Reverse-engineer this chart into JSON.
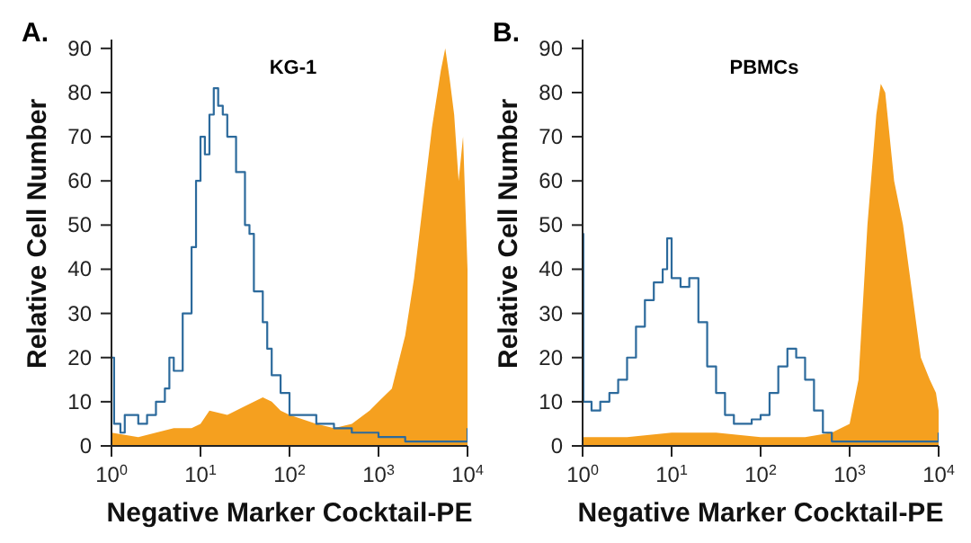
{
  "chart_data": [
    {
      "type": "area",
      "title": "A.",
      "annotations": [
        "KG-1"
      ],
      "xlabel": "Negative Marker Cocktail-PE",
      "ylabel": "Relative Cell Number",
      "log": "x",
      "marker": "none",
      "xlim": [
        1,
        10000
      ],
      "xticks": [
        {
          "value": 1,
          "label": "10$^{0}$"
        },
        {
          "value": 10,
          "label": "10$^{1}$"
        },
        {
          "value": 100,
          "label": "10$^{2}$"
        },
        {
          "value": 1000,
          "label": "10$^{3}$"
        },
        {
          "value": 10000,
          "label": "10$^{4}$"
        }
      ],
      "ylim": [
        0,
        92
      ],
      "yticks": [
        0,
        10,
        20,
        30,
        40,
        50,
        60,
        70,
        80,
        90
      ],
      "series": [
        {
          "color": "#f5a01f",
          "x": [
            1,
            2,
            3.16,
            5.01,
            7.94,
            10,
            12.6,
            20,
            31.6,
            50.1,
            63.1,
            79.4,
            100,
            200,
            316,
            501,
            794,
            1000,
            1413,
            1995,
            2512,
            3162,
            3981,
            5012,
            5623,
            6310,
            7079,
            7943,
            8913,
            10000
          ],
          "values": [
            3,
            2,
            3,
            4,
            4,
            5,
            8,
            7,
            9,
            11,
            10,
            8,
            7,
            5,
            4,
            5,
            8,
            10,
            13,
            25,
            38,
            55,
            72,
            85,
            90,
            83,
            75,
            60,
            70,
            40
          ]
        },
        {
          "type": "step",
          "color": "#2c6a9c",
          "x": [
            1,
            1.07,
            1.26,
            1.41,
            1.58,
            2,
            2.51,
            3.16,
            3.98,
            4.47,
            5.01,
            6.31,
            7.94,
            8.91,
            10,
            11.2,
            12.6,
            14.1,
            15.8,
            17.8,
            20,
            25.1,
            31.6,
            35.5,
            39.8,
            50.1,
            56.2,
            63.1,
            79.4,
            100,
            126,
            200,
            316,
            501,
            1000,
            1995,
            3162,
            6310,
            8913,
            10000
          ],
          "values": [
            20,
            5,
            3,
            7,
            7,
            5,
            7,
            10,
            13,
            20,
            17,
            30,
            45,
            60,
            70,
            66,
            75,
            81,
            77,
            75,
            70,
            62,
            50,
            48,
            35,
            28,
            22,
            16,
            12,
            7,
            7,
            5,
            4,
            3,
            2,
            1,
            1,
            1,
            1,
            4
          ]
        }
      ]
    },
    {
      "type": "area",
      "title": "B.",
      "annotations": [
        "PBMCs"
      ],
      "xlabel": "Negative Marker Cocktail-PE",
      "ylabel": "Relative Cell Number",
      "log": "x",
      "marker": "none",
      "xlim": [
        1,
        10000
      ],
      "xticks": [
        {
          "value": 1,
          "label": "10$^{0}$"
        },
        {
          "value": 10,
          "label": "10$^{1}$"
        },
        {
          "value": 100,
          "label": "10$^{2}$"
        },
        {
          "value": 1000,
          "label": "10$^{3}$"
        },
        {
          "value": 10000,
          "label": "10$^{4}$"
        }
      ],
      "ylim": [
        0,
        92
      ],
      "yticks": [
        0,
        10,
        20,
        30,
        40,
        50,
        60,
        70,
        80,
        90
      ],
      "series": [
        {
          "color": "#f5a01f",
          "x": [
            1,
            3.16,
            10,
            31.6,
            100,
            316,
            631,
            1000,
            1259,
            1585,
            1995,
            2239,
            2512,
            3162,
            3981,
            5012,
            6310,
            7943,
            9333,
            10000
          ],
          "values": [
            2,
            2,
            3,
            3,
            2,
            2,
            3,
            5,
            15,
            50,
            75,
            82,
            80,
            60,
            50,
            35,
            20,
            15,
            12,
            8
          ]
        },
        {
          "type": "step",
          "color": "#2c6a9c",
          "x": [
            1,
            1.02,
            1.26,
            1.58,
            2,
            2.51,
            3.16,
            3.98,
            5.01,
            6.31,
            7.94,
            8.91,
            10,
            12.6,
            15.8,
            20,
            25.1,
            31.6,
            39.8,
            50.1,
            79.4,
            100,
            126,
            158,
            200,
            251,
            316,
            398,
            501,
            631,
            1000,
            3162,
            10000
          ],
          "values": [
            48,
            10,
            8,
            10,
            12,
            15,
            20,
            27,
            33,
            37,
            40,
            47,
            38,
            36,
            38,
            28,
            18,
            12,
            7,
            5,
            6,
            7,
            12,
            18,
            22,
            20,
            15,
            8,
            3,
            1,
            1,
            1,
            3
          ]
        }
      ]
    }
  ]
}
